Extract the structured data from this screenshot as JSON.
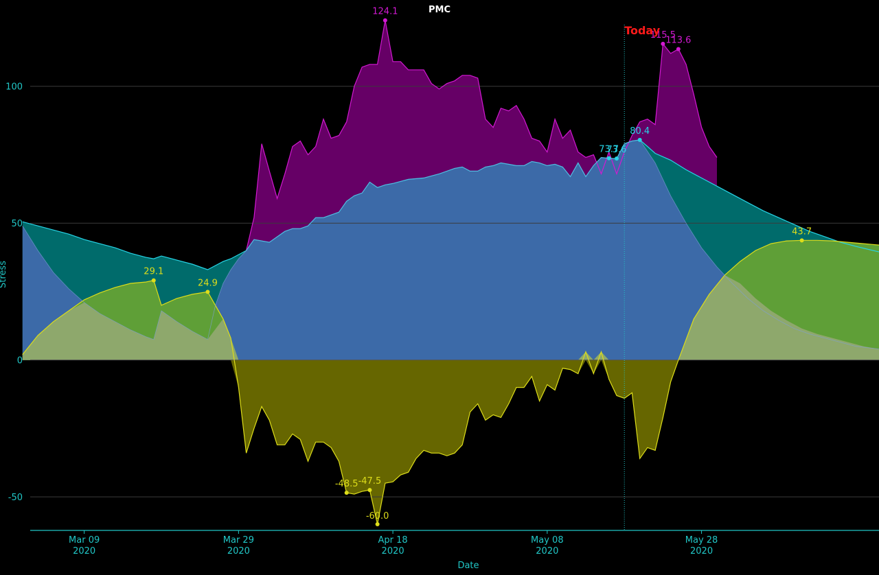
{
  "chart_data": {
    "type": "area",
    "title": "PMC",
    "xlabel": "Date",
    "ylabel": "Stress",
    "ylim": [
      -62,
      124.5
    ],
    "x_range": [
      "2020-03-02",
      "2020-06-20"
    ],
    "yticks": [
      -50,
      0,
      50,
      100
    ],
    "xticks": [
      {
        "date": "2020-03-09",
        "label": "Mar 09",
        "year": "2020"
      },
      {
        "date": "2020-03-29",
        "label": "Mar 29",
        "year": "2020"
      },
      {
        "date": "2020-04-18",
        "label": "Apr 18",
        "year": "2020"
      },
      {
        "date": "2020-05-08",
        "label": "May 08",
        "year": "2020"
      },
      {
        "date": "2020-05-28",
        "label": "May 28",
        "year": "2020"
      }
    ],
    "today": {
      "date": "2020-05-18",
      "label": "Today"
    },
    "colors": {
      "atl_fill": "#660066",
      "atl_line": "#d219d2",
      "ctl_fill": "#3c6aa8",
      "ctl_line": "#27d4e6",
      "ctl_future_fill": "#006b6b",
      "tsb_pos_fill": "#5f9f37",
      "tsb_neg_fill": "#666600",
      "tsb_line": "#dddd1a",
      "overlap_fill": "#8ea86c",
      "grid": "#3a3a3a",
      "axis": "#21c7c7",
      "today_line": "#21c7c7"
    },
    "series": [
      {
        "key": "ctl",
        "values": [
          [
            "2020-03-01",
            50.5
          ],
          [
            "2020-03-03",
            49
          ],
          [
            "2020-03-05",
            47.5
          ],
          [
            "2020-03-07",
            46
          ],
          [
            "2020-03-09",
            44
          ],
          [
            "2020-03-11",
            42.5
          ],
          [
            "2020-03-13",
            41
          ],
          [
            "2020-03-15",
            39
          ],
          [
            "2020-03-17",
            37.5
          ],
          [
            "2020-03-18",
            37
          ],
          [
            "2020-03-19",
            38
          ],
          [
            "2020-03-21",
            36.5
          ],
          [
            "2020-03-23",
            35
          ],
          [
            "2020-03-24",
            34
          ],
          [
            "2020-03-25",
            33
          ],
          [
            "2020-03-27",
            36
          ],
          [
            "2020-03-28",
            37
          ],
          [
            "2020-03-29",
            38.5
          ],
          [
            "2020-03-30",
            40
          ],
          [
            "2020-03-31",
            44
          ],
          [
            "2020-04-02",
            43
          ],
          [
            "2020-04-03",
            45
          ],
          [
            "2020-04-04",
            47
          ],
          [
            "2020-04-05",
            48
          ],
          [
            "2020-04-06",
            48
          ],
          [
            "2020-04-07",
            49
          ],
          [
            "2020-04-08",
            52
          ],
          [
            "2020-04-09",
            52
          ],
          [
            "2020-04-11",
            54
          ],
          [
            "2020-04-12",
            58
          ],
          [
            "2020-04-13",
            60
          ],
          [
            "2020-04-14",
            61
          ],
          [
            "2020-04-15",
            65
          ],
          [
            "2020-04-16",
            63
          ],
          [
            "2020-04-17",
            64
          ],
          [
            "2020-04-18",
            64.5
          ],
          [
            "2020-04-20",
            66
          ],
          [
            "2020-04-22",
            66.5
          ],
          [
            "2020-04-24",
            68
          ],
          [
            "2020-04-26",
            70
          ],
          [
            "2020-04-27",
            70.5
          ],
          [
            "2020-04-28",
            69
          ],
          [
            "2020-04-29",
            69
          ],
          [
            "2020-04-30",
            70.5
          ],
          [
            "2020-05-01",
            71
          ],
          [
            "2020-05-02",
            72
          ],
          [
            "2020-05-03",
            71.5
          ],
          [
            "2020-05-04",
            71
          ],
          [
            "2020-05-05",
            71
          ],
          [
            "2020-05-06",
            72.5
          ],
          [
            "2020-05-07",
            72
          ],
          [
            "2020-05-08",
            71
          ],
          [
            "2020-05-09",
            71.5
          ],
          [
            "2020-05-10",
            70.5
          ],
          [
            "2020-05-11",
            67
          ],
          [
            "2020-05-12",
            72
          ],
          [
            "2020-05-13",
            67
          ],
          [
            "2020-05-14",
            71
          ],
          [
            "2020-05-15",
            74
          ],
          [
            "2020-05-16",
            73.7
          ],
          [
            "2020-05-17",
            73.6
          ],
          [
            "2020-05-18",
            79
          ],
          [
            "2020-05-19",
            80
          ],
          [
            "2020-05-20",
            80.4
          ],
          [
            "2020-05-21",
            78
          ],
          [
            "2020-05-22",
            75.5
          ],
          [
            "2020-05-24",
            73
          ],
          [
            "2020-05-26",
            69.5
          ],
          [
            "2020-05-28",
            66.5
          ],
          [
            "2020-05-30",
            63.5
          ],
          [
            "2020-06-01",
            60.5
          ],
          [
            "2020-06-03",
            57.5
          ],
          [
            "2020-06-05",
            54.5
          ],
          [
            "2020-06-07",
            52
          ],
          [
            "2020-06-09",
            49.5
          ],
          [
            "2020-06-11",
            47
          ],
          [
            "2020-06-13",
            45
          ],
          [
            "2020-06-15",
            43
          ],
          [
            "2020-06-17",
            41.5
          ],
          [
            "2020-06-20",
            39.5
          ]
        ]
      },
      {
        "key": "atl",
        "values": [
          [
            "2020-03-30",
            40
          ],
          [
            "2020-03-31",
            52
          ],
          [
            "2020-04-01",
            79
          ],
          [
            "2020-04-02",
            69
          ],
          [
            "2020-04-03",
            59
          ],
          [
            "2020-04-04",
            68
          ],
          [
            "2020-04-05",
            78
          ],
          [
            "2020-04-06",
            80
          ],
          [
            "2020-04-07",
            75
          ],
          [
            "2020-04-08",
            78
          ],
          [
            "2020-04-09",
            88
          ],
          [
            "2020-04-10",
            81
          ],
          [
            "2020-04-11",
            82
          ],
          [
            "2020-04-12",
            87
          ],
          [
            "2020-04-13",
            100
          ],
          [
            "2020-04-14",
            107
          ],
          [
            "2020-04-15",
            108
          ],
          [
            "2020-04-16",
            108
          ],
          [
            "2020-04-17",
            124.1
          ],
          [
            "2020-04-18",
            109
          ],
          [
            "2020-04-19",
            109
          ],
          [
            "2020-04-20",
            106
          ],
          [
            "2020-04-22",
            106
          ],
          [
            "2020-04-23",
            101
          ],
          [
            "2020-04-24",
            99
          ],
          [
            "2020-04-25",
            101
          ],
          [
            "2020-04-26",
            102
          ],
          [
            "2020-04-27",
            104
          ],
          [
            "2020-04-28",
            104
          ],
          [
            "2020-04-29",
            103
          ],
          [
            "2020-04-30",
            88
          ],
          [
            "2020-05-01",
            85
          ],
          [
            "2020-05-02",
            92
          ],
          [
            "2020-05-03",
            91
          ],
          [
            "2020-05-04",
            93
          ],
          [
            "2020-05-05",
            88
          ],
          [
            "2020-05-06",
            81
          ],
          [
            "2020-05-07",
            80
          ],
          [
            "2020-05-08",
            76
          ],
          [
            "2020-05-09",
            88
          ],
          [
            "2020-05-10",
            81
          ],
          [
            "2020-05-11",
            84
          ],
          [
            "2020-05-12",
            76
          ],
          [
            "2020-05-13",
            74
          ],
          [
            "2020-05-14",
            75
          ],
          [
            "2020-05-15",
            68
          ],
          [
            "2020-05-16",
            76
          ],
          [
            "2020-05-17",
            68
          ],
          [
            "2020-05-18",
            76
          ],
          [
            "2020-05-19",
            82
          ],
          [
            "2020-05-20",
            87
          ],
          [
            "2020-05-21",
            88
          ],
          [
            "2020-05-22",
            86
          ],
          [
            "2020-05-23",
            115.5
          ],
          [
            "2020-05-24",
            112
          ],
          [
            "2020-05-25",
            113.6
          ],
          [
            "2020-05-26",
            108
          ],
          [
            "2020-05-27",
            97
          ],
          [
            "2020-05-28",
            85
          ],
          [
            "2020-05-29",
            78
          ],
          [
            "2020-05-30",
            74
          ]
        ]
      },
      {
        "key": "tsb",
        "values": [
          [
            "2020-03-01",
            2
          ],
          [
            "2020-03-03",
            9
          ],
          [
            "2020-03-05",
            14
          ],
          [
            "2020-03-07",
            18
          ],
          [
            "2020-03-09",
            22
          ],
          [
            "2020-03-11",
            24.5
          ],
          [
            "2020-03-13",
            26.5
          ],
          [
            "2020-03-15",
            28
          ],
          [
            "2020-03-17",
            28.5
          ],
          [
            "2020-03-18",
            29.1
          ],
          [
            "2020-03-19",
            20
          ],
          [
            "2020-03-21",
            22.5
          ],
          [
            "2020-03-23",
            24
          ],
          [
            "2020-03-25",
            24.9
          ],
          [
            "2020-03-27",
            15
          ],
          [
            "2020-03-28",
            8
          ],
          [
            "2020-03-29",
            -10
          ],
          [
            "2020-03-30",
            -34
          ],
          [
            "2020-03-31",
            -25
          ],
          [
            "2020-04-01",
            -17
          ],
          [
            "2020-04-02",
            -22
          ],
          [
            "2020-04-03",
            -31
          ],
          [
            "2020-04-04",
            -31
          ],
          [
            "2020-04-05",
            -27
          ],
          [
            "2020-04-06",
            -29
          ],
          [
            "2020-04-07",
            -37
          ],
          [
            "2020-04-08",
            -30
          ],
          [
            "2020-04-09",
            -30
          ],
          [
            "2020-04-10",
            -32
          ],
          [
            "2020-04-11",
            -37
          ],
          [
            "2020-04-12",
            -48.5
          ],
          [
            "2020-04-13",
            -49
          ],
          [
            "2020-04-14",
            -48
          ],
          [
            "2020-04-15",
            -47.5
          ],
          [
            "2020-04-16",
            -60
          ],
          [
            "2020-04-17",
            -45
          ],
          [
            "2020-04-18",
            -44.5
          ],
          [
            "2020-04-19",
            -42
          ],
          [
            "2020-04-20",
            -41
          ],
          [
            "2020-04-21",
            -36
          ],
          [
            "2020-04-22",
            -33
          ],
          [
            "2020-04-23",
            -34
          ],
          [
            "2020-04-24",
            -34
          ],
          [
            "2020-04-25",
            -35
          ],
          [
            "2020-04-26",
            -34
          ],
          [
            "2020-04-27",
            -31
          ],
          [
            "2020-04-28",
            -19
          ],
          [
            "2020-04-29",
            -16
          ],
          [
            "2020-04-30",
            -22
          ],
          [
            "2020-05-01",
            -20
          ],
          [
            "2020-05-02",
            -21
          ],
          [
            "2020-05-03",
            -16
          ],
          [
            "2020-05-04",
            -10
          ],
          [
            "2020-05-05",
            -10
          ],
          [
            "2020-05-06",
            -6
          ],
          [
            "2020-05-07",
            -15
          ],
          [
            "2020-05-08",
            -9
          ],
          [
            "2020-05-09",
            -11
          ],
          [
            "2020-05-10",
            -3
          ],
          [
            "2020-05-11",
            -3.5
          ],
          [
            "2020-05-12",
            -5
          ],
          [
            "2020-05-13",
            3
          ],
          [
            "2020-05-14",
            -5
          ],
          [
            "2020-05-15",
            3
          ],
          [
            "2020-05-16",
            -7
          ],
          [
            "2020-05-17",
            -13
          ],
          [
            "2020-05-18",
            -14
          ],
          [
            "2020-05-19",
            -12
          ],
          [
            "2020-05-20",
            -36
          ],
          [
            "2020-05-21",
            -32
          ],
          [
            "2020-05-22",
            -33
          ],
          [
            "2020-05-23",
            -21
          ],
          [
            "2020-05-24",
            -8
          ],
          [
            "2020-05-25",
            0
          ],
          [
            "2020-05-27",
            15
          ],
          [
            "2020-05-29",
            24
          ],
          [
            "2020-05-31",
            31
          ],
          [
            "2020-06-02",
            36
          ],
          [
            "2020-06-04",
            40
          ],
          [
            "2020-06-06",
            42.5
          ],
          [
            "2020-06-08",
            43.5
          ],
          [
            "2020-06-10",
            43.7
          ],
          [
            "2020-06-12",
            43.7
          ],
          [
            "2020-06-14",
            43.5
          ],
          [
            "2020-06-16",
            43
          ],
          [
            "2020-06-18",
            42.5
          ],
          [
            "2020-06-20",
            42
          ]
        ]
      }
    ],
    "ctl_past_fill_boundary": [
      [
        "2020-03-01",
        49
      ],
      [
        "2020-03-03",
        40
      ],
      [
        "2020-03-05",
        32
      ],
      [
        "2020-03-07",
        26
      ],
      [
        "2020-03-09",
        21
      ],
      [
        "2020-03-11",
        17
      ],
      [
        "2020-03-13",
        14
      ],
      [
        "2020-03-15",
        11
      ],
      [
        "2020-03-17",
        8.5
      ],
      [
        "2020-03-18",
        7.5
      ],
      [
        "2020-03-19",
        18
      ],
      [
        "2020-03-21",
        14
      ],
      [
        "2020-03-23",
        10.5
      ],
      [
        "2020-03-25",
        7.5
      ],
      [
        "2020-03-26",
        20
      ],
      [
        "2020-03-27",
        28
      ],
      [
        "2020-03-28",
        33
      ],
      [
        "2020-03-29",
        37
      ],
      [
        "2020-03-30",
        40
      ]
    ],
    "ctl_future_fill_boundary": [
      [
        "2020-05-20",
        80.4
      ],
      [
        "2020-05-22",
        72
      ],
      [
        "2020-05-24",
        60
      ],
      [
        "2020-05-26",
        50
      ],
      [
        "2020-05-28",
        41
      ],
      [
        "2020-05-30",
        34
      ],
      [
        "2020-06-01",
        28
      ],
      [
        "2020-06-03",
        22.5
      ],
      [
        "2020-06-05",
        18
      ],
      [
        "2020-06-07",
        14.5
      ],
      [
        "2020-06-09",
        11.5
      ],
      [
        "2020-06-11",
        9.5
      ],
      [
        "2020-06-13",
        8
      ],
      [
        "2020-06-15",
        6.5
      ],
      [
        "2020-06-17",
        5
      ],
      [
        "2020-06-20",
        4
      ]
    ],
    "annotations": [
      {
        "series": "atl",
        "date": "2020-04-17",
        "value": 124.1,
        "label": "124.1"
      },
      {
        "series": "atl",
        "date": "2020-05-23",
        "value": 115.5,
        "label": "115.5"
      },
      {
        "series": "atl",
        "date": "2020-05-25",
        "value": 113.6,
        "label": "113.6"
      },
      {
        "series": "ctl",
        "date": "2020-05-16",
        "value": 73.7,
        "label": "73.7"
      },
      {
        "series": "ctl",
        "date": "2020-05-17",
        "value": 73.6,
        "label": "73.6"
      },
      {
        "series": "ctl",
        "date": "2020-05-20",
        "value": 80.4,
        "label": "80.4"
      },
      {
        "series": "tsb",
        "date": "2020-03-18",
        "value": 29.1,
        "label": "29.1"
      },
      {
        "series": "tsb",
        "date": "2020-03-25",
        "value": 24.9,
        "label": "24.9"
      },
      {
        "series": "tsb",
        "date": "2020-06-10",
        "value": 43.7,
        "label": "43.7"
      },
      {
        "series": "tsb",
        "date": "2020-04-12",
        "value": -48.5,
        "label": "-48.5"
      },
      {
        "series": "tsb",
        "date": "2020-04-15",
        "value": -47.5,
        "label": "-47.5"
      },
      {
        "series": "tsb",
        "date": "2020-04-16",
        "value": -60.0,
        "label": "-60.0"
      }
    ]
  }
}
